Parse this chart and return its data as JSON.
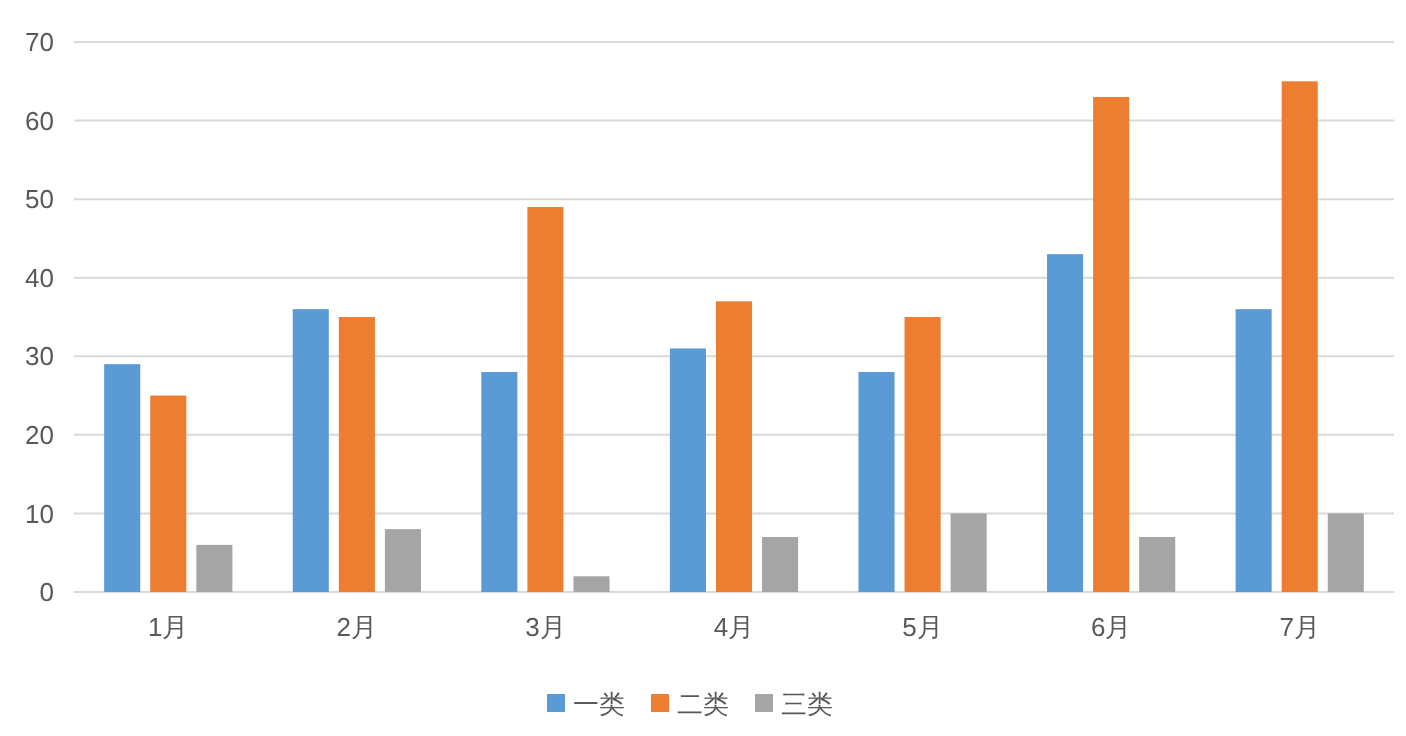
{
  "chart_data": {
    "type": "bar",
    "categories": [
      "1月",
      "2月",
      "3月",
      "4月",
      "5月",
      "6月",
      "7月"
    ],
    "series": [
      {
        "name": "一类",
        "color": "#5b9bd5",
        "values": [
          29,
          36,
          28,
          31,
          28,
          43,
          36
        ]
      },
      {
        "name": "二类",
        "color": "#ed7d31",
        "values": [
          25,
          35,
          49,
          37,
          35,
          63,
          65
        ]
      },
      {
        "name": "三类",
        "color": "#a5a5a5",
        "values": [
          6,
          8,
          2,
          7,
          10,
          7,
          10
        ]
      }
    ],
    "ylim": [
      0,
      70
    ],
    "yticks": [
      0,
      10,
      20,
      30,
      40,
      50,
      60,
      70
    ],
    "grid": "y",
    "legend": "bottom"
  }
}
